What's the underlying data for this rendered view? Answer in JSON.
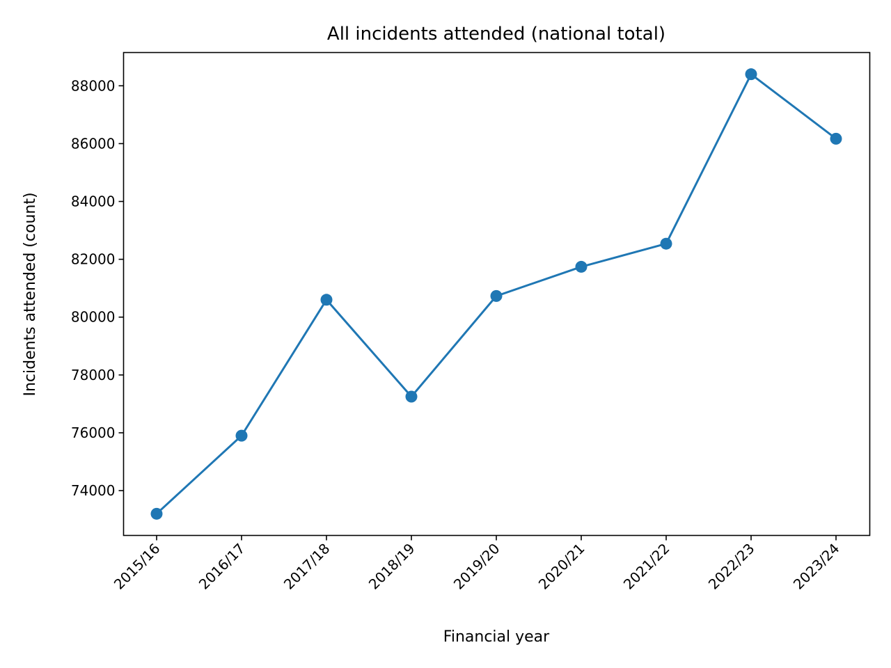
{
  "chart_data": {
    "type": "line",
    "title": "All incidents attended (national total)",
    "xlabel": "Financial year",
    "ylabel": "Incidents attended (count)",
    "categories": [
      "2015/16",
      "2016/17",
      "2017/18",
      "2018/19",
      "2019/20",
      "2020/21",
      "2021/22",
      "2022/23",
      "2023/24"
    ],
    "series": [
      {
        "values": [
          73200,
          75900,
          80600,
          77250,
          80730,
          81740,
          82540,
          88400,
          86170
        ],
        "color": "#1f77b4",
        "marker": "circle"
      }
    ],
    "ylim": [
      72450,
      89150
    ],
    "yticks": [
      74000,
      76000,
      78000,
      80000,
      82000,
      84000,
      86000,
      88000
    ],
    "ytick_labels": [
      "74000",
      "76000",
      "78000",
      "80000",
      "82000",
      "84000",
      "86000",
      "88000"
    ],
    "grid": false,
    "legend": "none"
  }
}
